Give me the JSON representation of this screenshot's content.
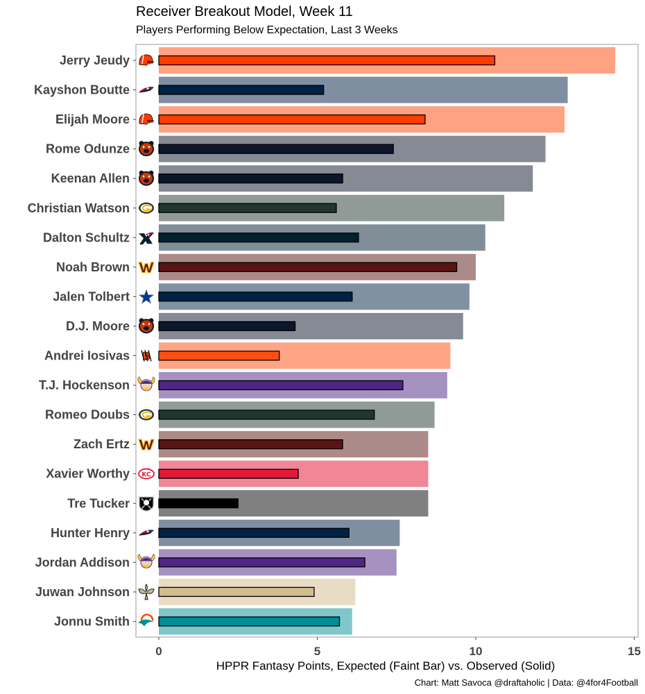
{
  "chart_data": {
    "type": "bar",
    "orientation": "horizontal",
    "title": "Receiver Breakout Model, Week 11",
    "subtitle": "Players Performing Below Expectation, Last 3 Weeks",
    "xlabel": "HPPR Fantasy Points, Expected (Faint Bar) vs. Observed (Solid)",
    "caption": "Chart: Matt Savoca @draftaholic | Data: @4for4Football",
    "xlim": [
      0,
      15
    ],
    "xticks": [
      0,
      5,
      10,
      15
    ],
    "grid": false,
    "series": [
      {
        "name": "Expected",
        "style": "faint"
      },
      {
        "name": "Observed",
        "style": "solid"
      }
    ],
    "rows": [
      {
        "player": "Jerry Jeudy",
        "team": "CLE",
        "logo_icon": "browns-helmet-icon",
        "expected": 14.4,
        "observed": 10.6,
        "faint_color": "#FFA282",
        "solid_color": "#FF3C00"
      },
      {
        "player": "Kayshon Boutte",
        "team": "NE",
        "logo_icon": "patriots-logo-icon",
        "expected": 12.9,
        "observed": 5.2,
        "faint_color": "#7F8FA1",
        "solid_color": "#002244"
      },
      {
        "player": "Elijah Moore",
        "team": "CLE",
        "logo_icon": "browns-helmet-icon",
        "expected": 12.8,
        "observed": 8.4,
        "faint_color": "#FFA282",
        "solid_color": "#FF3C00"
      },
      {
        "player": "Rome Odunze",
        "team": "CHI",
        "logo_icon": "bears-logo-icon",
        "expected": 12.2,
        "observed": 7.4,
        "faint_color": "#868A95",
        "solid_color": "#0B162A"
      },
      {
        "player": "Keenan Allen",
        "team": "CHI",
        "logo_icon": "bears-logo-icon",
        "expected": 11.8,
        "observed": 5.8,
        "faint_color": "#868A95",
        "solid_color": "#0B162A"
      },
      {
        "player": "Christian Watson",
        "team": "GB",
        "logo_icon": "packers-logo-icon",
        "expected": 10.9,
        "observed": 5.6,
        "faint_color": "#909B97",
        "solid_color": "#203731"
      },
      {
        "player": "Dalton Schultz",
        "team": "HOU",
        "logo_icon": "texans-logo-icon",
        "expected": 10.3,
        "observed": 6.3,
        "faint_color": "#7F8E97",
        "solid_color": "#03202F"
      },
      {
        "player": "Noah Brown",
        "team": "WAS",
        "logo_icon": "commanders-logo-icon",
        "expected": 10.0,
        "observed": 9.4,
        "faint_color": "#AC8A88",
        "solid_color": "#5A1414"
      },
      {
        "player": "Jalen Tolbert",
        "team": "DAL",
        "logo_icon": "cowboys-star-icon",
        "expected": 9.8,
        "observed": 6.1,
        "faint_color": "#7F91A3",
        "solid_color": "#002244"
      },
      {
        "player": "D.J. Moore",
        "team": "CHI",
        "logo_icon": "bears-logo-icon",
        "expected": 9.6,
        "observed": 4.3,
        "faint_color": "#868A95",
        "solid_color": "#0B162A"
      },
      {
        "player": "Andrei Iosivas",
        "team": "CIN",
        "logo_icon": "bengals-logo-icon",
        "expected": 9.2,
        "observed": 3.8,
        "faint_color": "#FFA585",
        "solid_color": "#FB4F14"
      },
      {
        "player": "T.J. Hockenson",
        "team": "MIN",
        "logo_icon": "vikings-logo-icon",
        "expected": 9.1,
        "observed": 7.7,
        "faint_color": "#A692C0",
        "solid_color": "#4F2683"
      },
      {
        "player": "Romeo Doubs",
        "team": "GB",
        "logo_icon": "packers-logo-icon",
        "expected": 8.7,
        "observed": 6.8,
        "faint_color": "#909B97",
        "solid_color": "#203731"
      },
      {
        "player": "Zach Ertz",
        "team": "WAS",
        "logo_icon": "commanders-logo-icon",
        "expected": 8.5,
        "observed": 5.8,
        "faint_color": "#AC8A88",
        "solid_color": "#5A1414"
      },
      {
        "player": "Xavier Worthy",
        "team": "KC",
        "logo_icon": "chiefs-logo-icon",
        "expected": 8.5,
        "observed": 4.4,
        "faint_color": "#F08696",
        "solid_color": "#E31837"
      },
      {
        "player": "Tre Tucker",
        "team": "LV",
        "logo_icon": "raiders-logo-icon",
        "expected": 8.5,
        "observed": 2.5,
        "faint_color": "#808080",
        "solid_color": "#000000"
      },
      {
        "player": "Hunter Henry",
        "team": "NE",
        "logo_icon": "patriots-logo-icon",
        "expected": 7.6,
        "observed": 6.0,
        "faint_color": "#7F8FA1",
        "solid_color": "#002244"
      },
      {
        "player": "Jordan Addison",
        "team": "MIN",
        "logo_icon": "vikings-logo-icon",
        "expected": 7.5,
        "observed": 6.5,
        "faint_color": "#A692C0",
        "solid_color": "#4F2683"
      },
      {
        "player": "Juwan Johnson",
        "team": "NO",
        "logo_icon": "saints-logo-icon",
        "expected": 6.2,
        "observed": 4.9,
        "faint_color": "#E8DCC5",
        "solid_color": "#D3BC8D"
      },
      {
        "player": "Jonnu Smith",
        "team": "MIA",
        "logo_icon": "dolphins-logo-icon",
        "expected": 6.1,
        "observed": 5.7,
        "faint_color": "#7FC7CB",
        "solid_color": "#008E97"
      }
    ]
  }
}
